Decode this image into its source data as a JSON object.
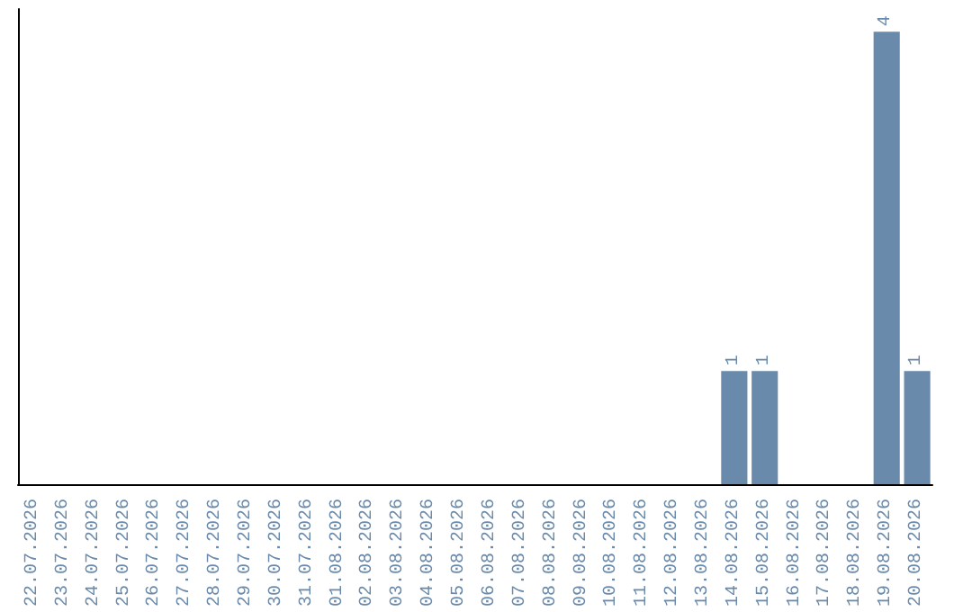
{
  "chart_data": {
    "type": "bar",
    "categories": [
      "22.07.2026",
      "23.07.2026",
      "24.07.2026",
      "25.07.2026",
      "26.07.2026",
      "27.07.2026",
      "28.07.2026",
      "29.07.2026",
      "30.07.2026",
      "31.07.2026",
      "01.08.2026",
      "02.08.2026",
      "03.08.2026",
      "04.08.2026",
      "05.08.2026",
      "06.08.2026",
      "07.08.2026",
      "08.08.2026",
      "09.08.2026",
      "10.08.2026",
      "11.08.2026",
      "12.08.2026",
      "13.08.2026",
      "14.08.2026",
      "15.08.2026",
      "16.08.2026",
      "17.08.2026",
      "18.08.2026",
      "19.08.2026",
      "20.08.2026"
    ],
    "values": [
      null,
      null,
      null,
      null,
      null,
      null,
      null,
      null,
      null,
      null,
      null,
      null,
      null,
      null,
      null,
      null,
      null,
      null,
      null,
      null,
      null,
      null,
      null,
      1,
      1,
      null,
      null,
      null,
      4,
      1
    ],
    "value_labels": [
      null,
      null,
      null,
      null,
      null,
      null,
      null,
      null,
      null,
      null,
      null,
      null,
      null,
      null,
      null,
      null,
      null,
      null,
      null,
      null,
      null,
      null,
      null,
      "1",
      "1",
      null,
      null,
      null,
      "4",
      "1"
    ],
    "color": "#6a8aab",
    "ylim": [
      0,
      4.2
    ],
    "grid": false
  }
}
